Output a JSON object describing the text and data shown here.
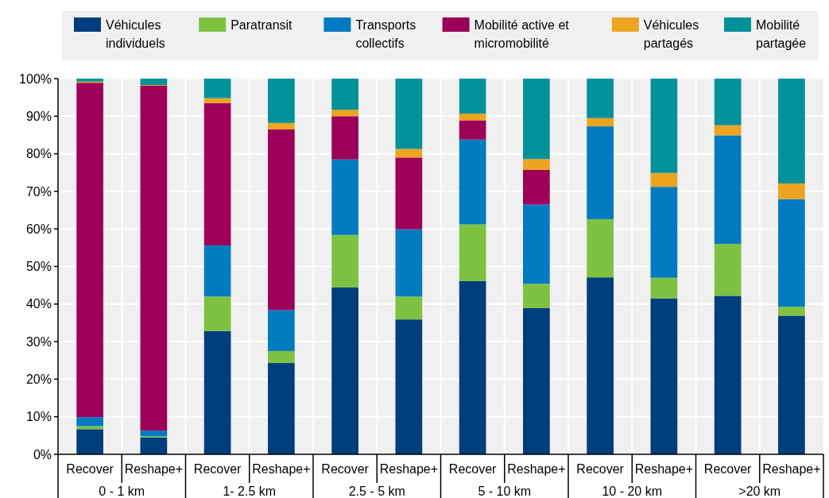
{
  "chart_data": {
    "type": "bar",
    "stacked": true,
    "grid": true,
    "legend": "top",
    "categories": [
      "Recover",
      "Reshape+",
      "Recover",
      "Reshape+",
      "Recover",
      "Reshape+",
      "Recover",
      "Reshape+",
      "Recover",
      "Reshape+",
      "Recover",
      "Reshape+"
    ],
    "annotations": [
      "0 - 1 km",
      "1- 2.5 km",
      "2.5 - 5 km",
      "5 - 10 km",
      "10 - 20 km",
      ">20 km"
    ],
    "ylim": [
      0,
      100
    ],
    "yticks": [
      {
        "value": 0,
        "label": "0%"
      },
      {
        "value": 10,
        "label": "10%"
      },
      {
        "value": 20,
        "label": "20%"
      },
      {
        "value": 30,
        "label": "30%"
      },
      {
        "value": 40,
        "label": "40%"
      },
      {
        "value": 50,
        "label": "50%"
      },
      {
        "value": 60,
        "label": "60%"
      },
      {
        "value": 70,
        "label": "70%"
      },
      {
        "value": 80,
        "label": "80%"
      },
      {
        "value": 90,
        "label": "90%"
      },
      {
        "value": 100,
        "label": "100%"
      }
    ],
    "series": [
      {
        "name": "Véhicules individuels",
        "color": "#003d7c",
        "values": [
          6.7,
          4.5,
          32.8,
          24.3,
          44.4,
          35.9,
          46.1,
          38.9,
          47.1,
          41.5,
          42.2,
          36.9
        ]
      },
      {
        "name": "Paratransit",
        "color": "#7fc241",
        "values": [
          0.8,
          0.3,
          9.2,
          3.2,
          14.0,
          6.1,
          15.1,
          6.5,
          15.5,
          5.5,
          13.8,
          2.4
        ]
      },
      {
        "name": "Transports collectifs",
        "color": "#007bc2",
        "values": [
          2.4,
          1.5,
          13.6,
          10.9,
          20.1,
          17.9,
          22.6,
          21.1,
          24.7,
          24.2,
          28.9,
          28.6
        ]
      },
      {
        "name": "Mobilité active et micromobilité",
        "color": "#9c0059",
        "values": [
          89.0,
          91.8,
          37.9,
          48.1,
          11.5,
          19.1,
          5.1,
          9.2,
          0,
          0,
          0,
          0
        ]
      },
      {
        "name": "Véhicules partagés",
        "color": "#eda421",
        "values": [
          0.3,
          0.2,
          1.3,
          1.7,
          1.7,
          2.3,
          1.8,
          2.9,
          2.2,
          3.7,
          2.7,
          4.2
        ]
      },
      {
        "name": "Mobilité partagée",
        "color": "#00919b",
        "values": [
          0.8,
          1.7,
          5.2,
          11.8,
          8.3,
          18.7,
          9.3,
          21.4,
          10.5,
          25.1,
          12.4,
          27.9
        ]
      }
    ]
  }
}
